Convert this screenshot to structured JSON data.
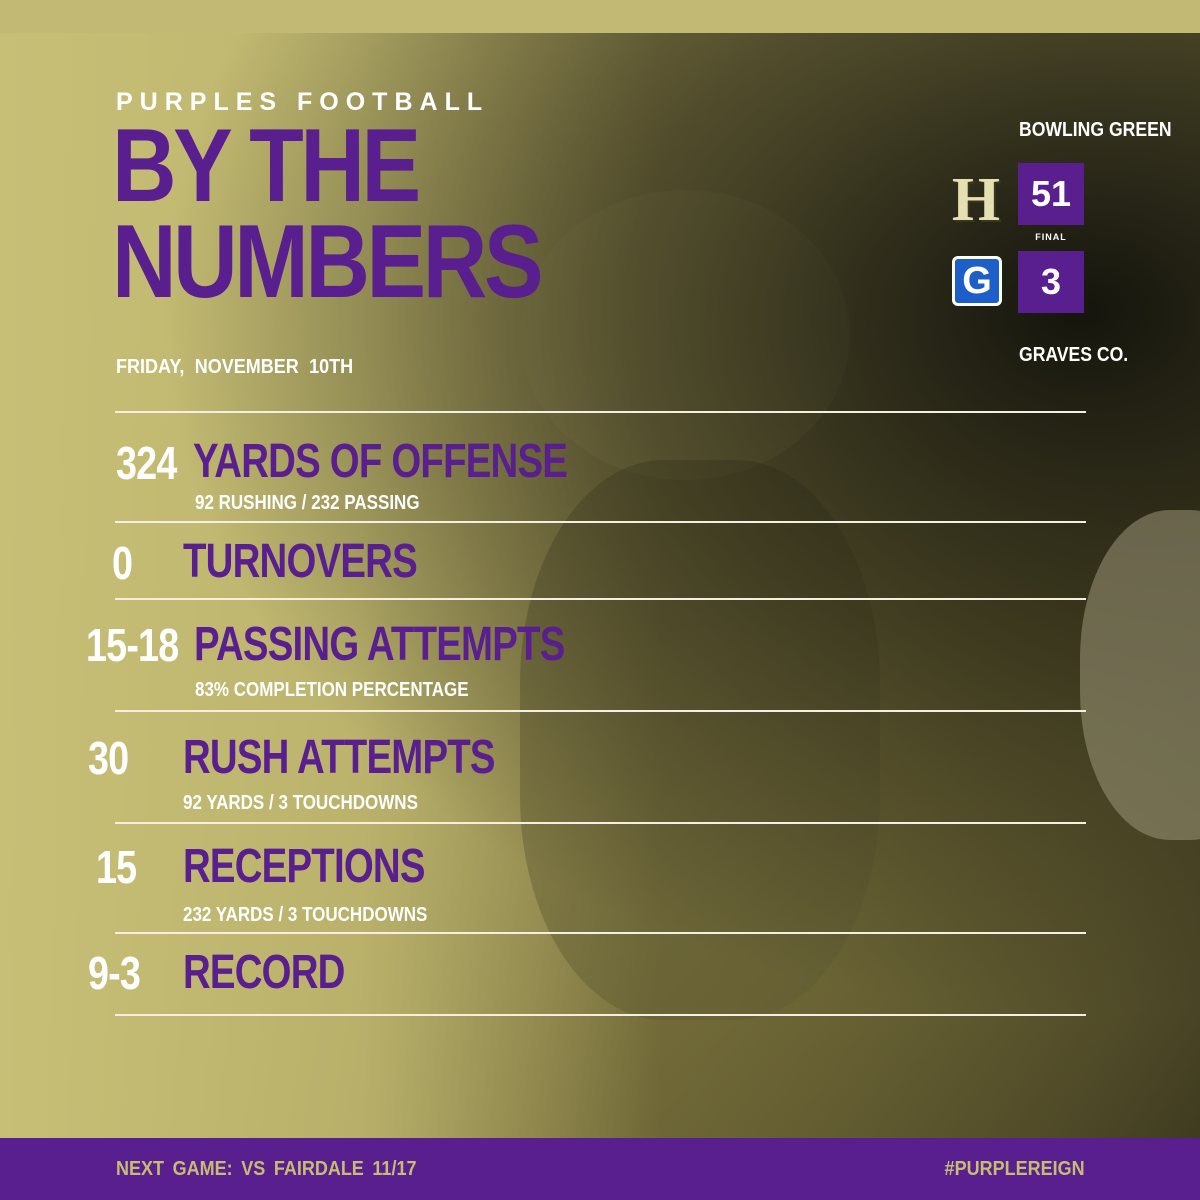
{
  "header": {
    "kicker": "PURPLES FOOTBALL",
    "title_line1": "BY THE",
    "title_line2": "NUMBERS",
    "date": "FRIDAY,  NOVEMBER 10TH"
  },
  "scoreboard": {
    "home": {
      "name": "BOWLING GREEN",
      "score": "51",
      "logo_letter": "H",
      "logo_icon": "bowling-green-h-logo-icon"
    },
    "away": {
      "name": "GRAVES CO.",
      "score": "3",
      "logo_letter": "G",
      "logo_icon": "graves-county-g-logo-icon"
    },
    "status": "FINAL"
  },
  "stats": [
    {
      "value": "324",
      "label": "YARDS OF OFFENSE",
      "sub": "92 RUSHING / 232 PASSING"
    },
    {
      "value": "0",
      "label": "TURNOVERS",
      "sub": ""
    },
    {
      "value": "15-18",
      "label": "PASSING ATTEMPTS",
      "sub": "83% COMPLETION PERCENTAGE"
    },
    {
      "value": "30",
      "label": "RUSH ATTEMPTS",
      "sub": "92 YARDS / 3 TOUCHDOWNS"
    },
    {
      "value": "15",
      "label": "RECEPTIONS",
      "sub": "232 YARDS / 3 TOUCHDOWNS"
    },
    {
      "value": "9-3",
      "label": "RECORD",
      "sub": ""
    }
  ],
  "footer": {
    "next_game": "NEXT GAME:  VS FAIRDALE 11/17",
    "hashtag": "#PURPLEREIGN"
  },
  "colors": {
    "purple": "#5a1f8e",
    "gold": "#c6bd74",
    "white": "#ffffff",
    "graves_blue": "#1e5ec9"
  }
}
